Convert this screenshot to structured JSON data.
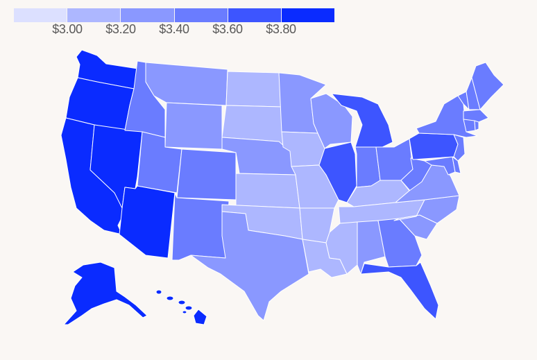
{
  "legend": {
    "ticks": [
      "$3.00",
      "$3.20",
      "$3.40",
      "$3.60",
      "$3.80"
    ],
    "bin_colors": [
      "#DCE0FF",
      "#ADB7FF",
      "#8A98FF",
      "#6A7CFF",
      "#3D55FF",
      "#0A2BFF"
    ]
  },
  "states": [
    {
      "code": "WA",
      "bin": 5
    },
    {
      "code": "OR",
      "bin": 5
    },
    {
      "code": "CA",
      "bin": 5
    },
    {
      "code": "NV",
      "bin": 5
    },
    {
      "code": "AZ",
      "bin": 5
    },
    {
      "code": "ID",
      "bin": 3
    },
    {
      "code": "MT",
      "bin": 2
    },
    {
      "code": "WY",
      "bin": 2
    },
    {
      "code": "UT",
      "bin": 3
    },
    {
      "code": "CO",
      "bin": 3
    },
    {
      "code": "NM",
      "bin": 3
    },
    {
      "code": "ND",
      "bin": 1
    },
    {
      "code": "SD",
      "bin": 1
    },
    {
      "code": "NE",
      "bin": 2
    },
    {
      "code": "KS",
      "bin": 1
    },
    {
      "code": "OK",
      "bin": 1
    },
    {
      "code": "TX",
      "bin": 2
    },
    {
      "code": "MN",
      "bin": 2
    },
    {
      "code": "IA",
      "bin": 1
    },
    {
      "code": "MO",
      "bin": 1
    },
    {
      "code": "AR",
      "bin": 1
    },
    {
      "code": "LA",
      "bin": 1
    },
    {
      "code": "WI",
      "bin": 2
    },
    {
      "code": "IL",
      "bin": 4
    },
    {
      "code": "MI",
      "bin": 4
    },
    {
      "code": "IN",
      "bin": 3
    },
    {
      "code": "OH",
      "bin": 3
    },
    {
      "code": "KY",
      "bin": 1
    },
    {
      "code": "TN",
      "bin": 1
    },
    {
      "code": "MS",
      "bin": 1
    },
    {
      "code": "AL",
      "bin": 2
    },
    {
      "code": "GA",
      "bin": 3
    },
    {
      "code": "FL",
      "bin": 4
    },
    {
      "code": "SC",
      "bin": 2
    },
    {
      "code": "NC",
      "bin": 2
    },
    {
      "code": "VA",
      "bin": 2
    },
    {
      "code": "WV",
      "bin": 3
    },
    {
      "code": "PA",
      "bin": 4
    },
    {
      "code": "NY",
      "bin": 3
    },
    {
      "code": "VT",
      "bin": 3
    },
    {
      "code": "NH",
      "bin": 3
    },
    {
      "code": "ME",
      "bin": 3
    },
    {
      "code": "MA",
      "bin": 3
    },
    {
      "code": "CT",
      "bin": 3
    },
    {
      "code": "RI",
      "bin": 3
    },
    {
      "code": "NJ",
      "bin": 3
    },
    {
      "code": "DE",
      "bin": 3
    },
    {
      "code": "MD",
      "bin": 3
    },
    {
      "code": "AK",
      "bin": 5
    },
    {
      "code": "HI",
      "bin": 5
    }
  ]
}
